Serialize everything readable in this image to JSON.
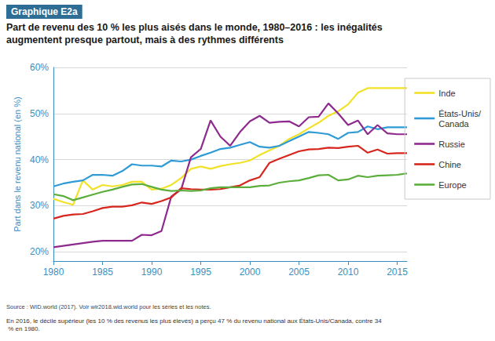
{
  "chart_data": {
    "type": "line",
    "title": "Graphique E2a",
    "subtitle": "Part de revenu des 10 % les plus aisés dans le monde, 1980–2016 : les inégalités augmentent presque partout, mais à des rythmes différents",
    "y_label": "Part dans le revenu national (en %)",
    "source": "Source : WID.world (2017). Voir wir2018.wid.world pour les séries et les notes.",
    "note": "En 2016, le décile supérieur (les 10 % des revenus les plus élevés) a perçu 47 % du revenu national aux États-Unis/Canada, contre 34 % en 1980.",
    "x": [
      1980,
      1981,
      1982,
      1983,
      1984,
      1985,
      1986,
      1987,
      1988,
      1989,
      1990,
      1991,
      1992,
      1993,
      1994,
      1995,
      1996,
      1997,
      1998,
      1999,
      2000,
      2001,
      2002,
      2003,
      2004,
      2005,
      2006,
      2007,
      2008,
      2009,
      2010,
      2011,
      2012,
      2013,
      2014,
      2015,
      2016
    ],
    "xlim": [
      1980,
      2016
    ],
    "xticks": [
      1980,
      1985,
      1990,
      1995,
      2000,
      2005,
      2010,
      2015
    ],
    "ylim": [
      18,
      60
    ],
    "yticks": [
      {
        "value": 20,
        "label": "20%"
      },
      {
        "value": 30,
        "label": "30%"
      },
      {
        "value": 40,
        "label": "40%"
      },
      {
        "value": 50,
        "label": "50%"
      },
      {
        "value": 60,
        "label": "60%"
      }
    ],
    "grid": true,
    "legend": "right",
    "series": [
      {
        "name": "Inde",
        "color": "#f2e227",
        "values": [
          31.5,
          30.8,
          30.2,
          35.5,
          33.5,
          34.5,
          34.2,
          34.5,
          35.2,
          35.2,
          33.5,
          33.7,
          34.5,
          36,
          38,
          38.5,
          38,
          38.6,
          39,
          39.3,
          39.8,
          41,
          42,
          43,
          44.5,
          45.5,
          46.8,
          48,
          49.5,
          50.5,
          52,
          54.5,
          55.5,
          55.5,
          55.5,
          55.5,
          55.5
        ]
      },
      {
        "name": "États-Unis/\nCanada",
        "color": "#2e9bd6",
        "values": [
          34.2,
          34.8,
          35.2,
          35.5,
          36.7,
          36.7,
          36.5,
          37.5,
          39,
          38.7,
          38.7,
          38.5,
          39.8,
          39.6,
          40,
          40.8,
          41.5,
          42.3,
          42.6,
          43.2,
          43.8,
          42.8,
          42.6,
          43,
          44,
          45,
          46,
          45.8,
          45.5,
          44.5,
          45.8,
          46,
          47.2,
          46.6,
          47,
          47,
          47
        ]
      },
      {
        "name": "Russie",
        "color": "#8e2a8e",
        "values": [
          21,
          21.3,
          21.6,
          21.9,
          22.2,
          22.4,
          22.4,
          22.4,
          22.4,
          23.7,
          23.6,
          24.5,
          32,
          33.5,
          40.5,
          42.3,
          48.5,
          45,
          43,
          46,
          48.3,
          49.5,
          48,
          48.2,
          48.3,
          47.2,
          49.2,
          49.3,
          52.2,
          50,
          47.5,
          48.5,
          45.5,
          47.5,
          45.7,
          45.5,
          45.5
        ]
      },
      {
        "name": "Chine",
        "color": "#d7261e",
        "values": [
          27.2,
          27.8,
          28.1,
          28.2,
          28.8,
          29.5,
          29.8,
          29.8,
          30.1,
          30.7,
          30.4,
          31,
          31.8,
          33.8,
          33.6,
          33.5,
          33.5,
          33.6,
          34,
          34.4,
          35.5,
          36.2,
          39.3,
          40.2,
          41,
          41.8,
          42.2,
          42.3,
          42.6,
          42.5,
          42.8,
          43,
          41.5,
          42.2,
          41.3,
          41.4,
          41.4
        ]
      },
      {
        "name": "Europe",
        "color": "#5cae3c",
        "values": [
          32.5,
          32.1,
          31.2,
          31.8,
          32.4,
          33,
          33.5,
          34.1,
          34.6,
          34.7,
          34.1,
          33.5,
          33.2,
          33.3,
          33.2,
          33.3,
          33.8,
          34,
          34,
          34,
          34,
          34.3,
          34.4,
          35,
          35.3,
          35.5,
          36,
          36.6,
          36.7,
          35.5,
          35.7,
          36.5,
          36.2,
          36.5,
          36.6,
          36.7,
          37
        ]
      }
    ]
  }
}
